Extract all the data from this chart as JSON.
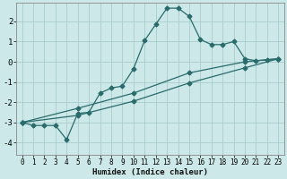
{
  "xlabel": "Humidex (Indice chaleur)",
  "bg_color": "#cce8e8",
  "grid_color": "#aacccc",
  "line_color": "#2a6b6b",
  "xlim": [
    -0.5,
    23.5
  ],
  "ylim": [
    -4.6,
    2.9
  ],
  "xticks": [
    0,
    1,
    2,
    3,
    4,
    5,
    6,
    7,
    8,
    9,
    10,
    11,
    12,
    13,
    14,
    15,
    16,
    17,
    18,
    19,
    20,
    21,
    22,
    23
  ],
  "yticks": [
    -4,
    -3,
    -2,
    -1,
    0,
    1,
    2
  ],
  "line1_x": [
    0,
    1,
    2,
    3,
    4,
    5,
    6,
    7,
    8,
    9,
    10,
    11,
    12,
    13,
    14,
    15,
    16,
    17,
    18,
    19,
    20,
    21,
    22,
    23
  ],
  "line1_y": [
    -3.0,
    -3.15,
    -3.15,
    -3.15,
    -3.85,
    -2.55,
    -2.5,
    -1.55,
    -1.3,
    -1.2,
    -0.35,
    1.05,
    1.85,
    2.65,
    2.65,
    2.25,
    1.1,
    0.85,
    0.85,
    1.0,
    0.15,
    0.05,
    0.1,
    0.15
  ],
  "line2_x": [
    0,
    23
  ],
  "line2_y": [
    -3.0,
    0.15
  ],
  "line3_x": [
    0,
    23
  ],
  "line3_y": [
    -3.0,
    0.15
  ],
  "line2_pts_x": [
    0,
    5,
    10,
    15,
    20,
    23
  ],
  "line2_pts_y": [
    -3.0,
    -2.3,
    -1.55,
    -0.55,
    0.0,
    0.15
  ],
  "line3_pts_x": [
    0,
    5,
    10,
    15,
    20,
    23
  ],
  "line3_pts_y": [
    -3.0,
    -2.65,
    -1.95,
    -1.05,
    -0.3,
    0.15
  ],
  "marker": "D",
  "marker_size": 2.5,
  "line_width": 0.9
}
